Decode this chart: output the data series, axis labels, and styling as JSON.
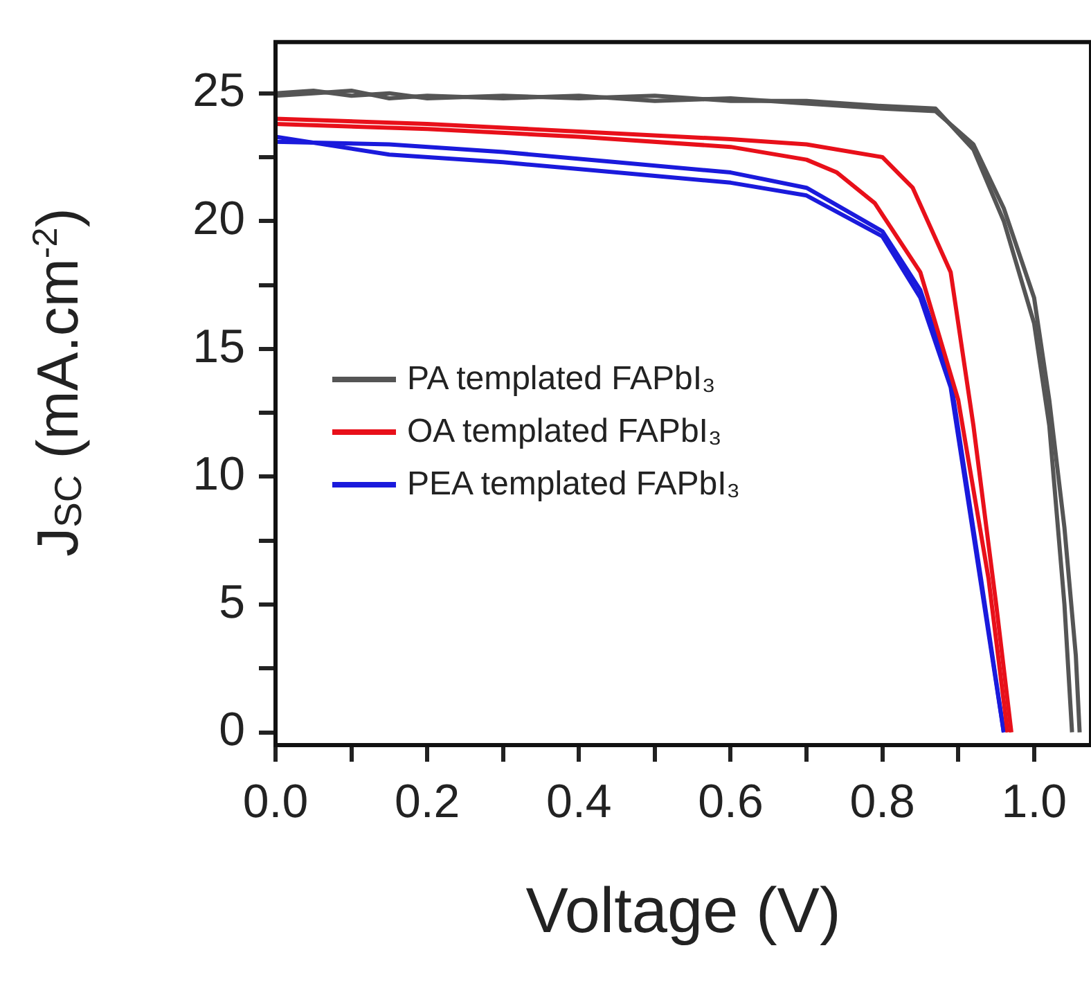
{
  "chart_data": {
    "type": "line",
    "xlabel": "Voltage (V)",
    "ylabel": "J$_{SC}$ (mA.cm$^{-2}$)",
    "xlim": [
      0,
      1.075
    ],
    "xticks": [
      {
        "value": 0,
        "label": "0.0"
      },
      {
        "value": 0.1,
        "label": null
      },
      {
        "value": 0.2,
        "label": "0.2"
      },
      {
        "value": 0.3,
        "label": null
      },
      {
        "value": 0.4,
        "label": "0.4"
      },
      {
        "value": 0.5,
        "label": null
      },
      {
        "value": 0.6,
        "label": "0.6"
      },
      {
        "value": 0.7,
        "label": null
      },
      {
        "value": 0.8,
        "label": "0.8"
      },
      {
        "value": 0.9,
        "label": null
      },
      {
        "value": 1,
        "label": "1.0"
      }
    ],
    "ylim": [
      -0.5,
      27
    ],
    "yticks": [
      0,
      {
        "value": 2.5,
        "label": null
      },
      5,
      {
        "value": 7.5,
        "label": null
      },
      10,
      {
        "value": 12.5,
        "label": null
      },
      15,
      {
        "value": 17.5,
        "label": null
      },
      20,
      {
        "value": 22.5,
        "label": null
      },
      25
    ],
    "grid": false,
    "legend": "left",
    "marker": "none",
    "line_style": "solid",
    "series": [
      {
        "name": "PA templated FAPbI₃",
        "color": "#555555",
        "x": [
          0,
          0.05,
          0.1,
          0.15,
          0.2,
          0.3,
          0.4,
          0.5,
          0.6,
          0.7,
          0.8,
          0.87,
          0.92,
          0.96,
          1.0,
          1.02,
          1.04,
          1.05
        ],
        "values": [
          25,
          25.1,
          24.9,
          25,
          24.8,
          24.9,
          24.8,
          24.9,
          24.7,
          24.7,
          24.5,
          24.4,
          22.8,
          20,
          16,
          12,
          5,
          0
        ]
      },
      {
        "color": "#555555",
        "x": [
          0,
          0.05,
          0.1,
          0.15,
          0.2,
          0.3,
          0.4,
          0.5,
          0.6,
          0.7,
          0.8,
          0.87,
          0.92,
          0.96,
          1.0,
          1.02,
          1.04,
          1.055,
          1.06
        ],
        "values": [
          24.9,
          25,
          25.1,
          24.8,
          24.9,
          24.8,
          24.9,
          24.7,
          24.8,
          24.6,
          24.4,
          24.3,
          23,
          20.5,
          17,
          13,
          8,
          3,
          0
        ]
      },
      {
        "name": "OA templated FAPbI₃",
        "color": "#e8101a",
        "x": [
          0,
          0.2,
          0.4,
          0.6,
          0.7,
          0.8,
          0.84,
          0.89,
          0.92,
          0.95,
          0.97
        ],
        "values": [
          24,
          23.8,
          23.5,
          23.2,
          23,
          22.5,
          21.3,
          18,
          12,
          5,
          0
        ]
      },
      {
        "color": "#e8101a",
        "x": [
          0,
          0.2,
          0.4,
          0.6,
          0.7,
          0.74,
          0.79,
          0.85,
          0.9,
          0.94,
          0.965
        ],
        "values": [
          23.8,
          23.6,
          23.3,
          22.9,
          22.4,
          21.9,
          20.7,
          18,
          13,
          6,
          0
        ]
      },
      {
        "name": "PEA templated FAPbI₃",
        "color": "#1a1adc",
        "x": [
          0,
          0.15,
          0.3,
          0.45,
          0.6,
          0.7,
          0.8,
          0.85,
          0.89,
          0.93,
          0.96
        ],
        "values": [
          23.1,
          23,
          22.7,
          22.3,
          21.9,
          21.3,
          19.6,
          17.3,
          13.8,
          6,
          0
        ]
      },
      {
        "color": "#1a1adc",
        "x": [
          0,
          0.15,
          0.3,
          0.45,
          0.6,
          0.7,
          0.8,
          0.85,
          0.89,
          0.93,
          0.96
        ],
        "values": [
          23.3,
          22.6,
          22.3,
          21.9,
          21.5,
          21,
          19.4,
          17,
          13.5,
          5.8,
          0
        ]
      }
    ]
  }
}
